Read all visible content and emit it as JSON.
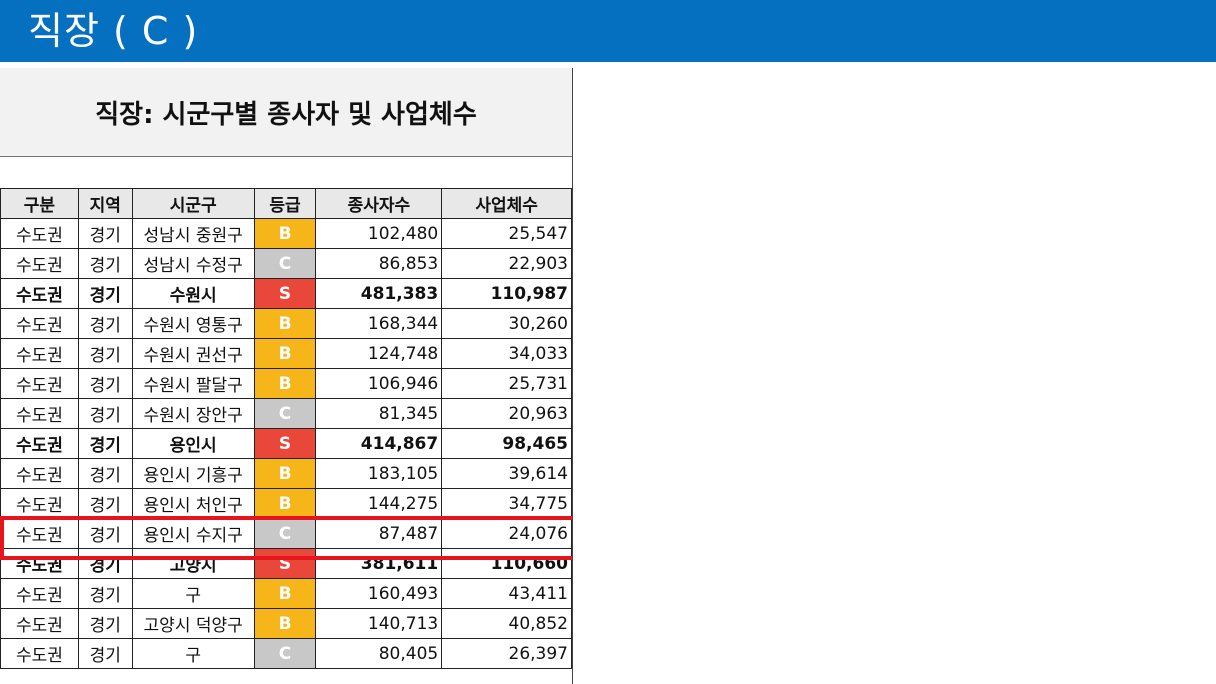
{
  "slide": {
    "title": "직장 ( C )"
  },
  "sheet_title": "직장: 시군구별 종사자 및 사업체수",
  "headers": [
    "구분",
    "지역",
    "시군구",
    "등급",
    "종사자수",
    "사업체수"
  ],
  "grade_colors": {
    "S": "#e8473a",
    "B": "#f6b519",
    "C": "#c8c8c8"
  },
  "rows": [
    {
      "region": "수도권",
      "area": "경기",
      "district": "성남시 중원구",
      "grade": "B",
      "workers": "102,480",
      "businesses": "25,547",
      "bold": false
    },
    {
      "region": "수도권",
      "area": "경기",
      "district": "성남시 수정구",
      "grade": "C",
      "workers": "86,853",
      "businesses": "22,903",
      "bold": false
    },
    {
      "region": "수도권",
      "area": "경기",
      "district": "수원시",
      "grade": "S",
      "workers": "481,383",
      "businesses": "110,987",
      "bold": true
    },
    {
      "region": "수도권",
      "area": "경기",
      "district": "수원시 영통구",
      "grade": "B",
      "workers": "168,344",
      "businesses": "30,260",
      "bold": false
    },
    {
      "region": "수도권",
      "area": "경기",
      "district": "수원시 권선구",
      "grade": "B",
      "workers": "124,748",
      "businesses": "34,033",
      "bold": false
    },
    {
      "region": "수도권",
      "area": "경기",
      "district": "수원시 팔달구",
      "grade": "B",
      "workers": "106,946",
      "businesses": "25,731",
      "bold": false
    },
    {
      "region": "수도권",
      "area": "경기",
      "district": "수원시 장안구",
      "grade": "C",
      "workers": "81,345",
      "businesses": "20,963",
      "bold": false
    },
    {
      "region": "수도권",
      "area": "경기",
      "district": "용인시",
      "grade": "S",
      "workers": "414,867",
      "businesses": "98,465",
      "bold": true
    },
    {
      "region": "수도권",
      "area": "경기",
      "district": "용인시 기흥구",
      "grade": "B",
      "workers": "183,105",
      "businesses": "39,614",
      "bold": false
    },
    {
      "region": "수도권",
      "area": "경기",
      "district": "용인시 처인구",
      "grade": "B",
      "workers": "144,275",
      "businesses": "34,775",
      "bold": false
    },
    {
      "region": "수도권",
      "area": "경기",
      "district": "용인시 수지구",
      "grade": "C",
      "workers": "87,487",
      "businesses": "24,076",
      "bold": false
    },
    {
      "region": "수도권",
      "area": "경기",
      "district": "고양시",
      "grade": "S",
      "workers": "381,611",
      "businesses": "110,660",
      "bold": true
    },
    {
      "region": "수도권",
      "area": "경기",
      "district": "구",
      "grade": "B",
      "workers": "160,493",
      "businesses": "43,411",
      "bold": false
    },
    {
      "region": "수도권",
      "area": "경기",
      "district": "고양시 덕양구",
      "grade": "B",
      "workers": "140,713",
      "businesses": "40,852",
      "bold": false
    },
    {
      "region": "수도권",
      "area": "경기",
      "district": "구",
      "grade": "C",
      "workers": "80,405",
      "businesses": "26,397",
      "bold": false
    }
  ],
  "highlighted_row": "용인시 수지구"
}
